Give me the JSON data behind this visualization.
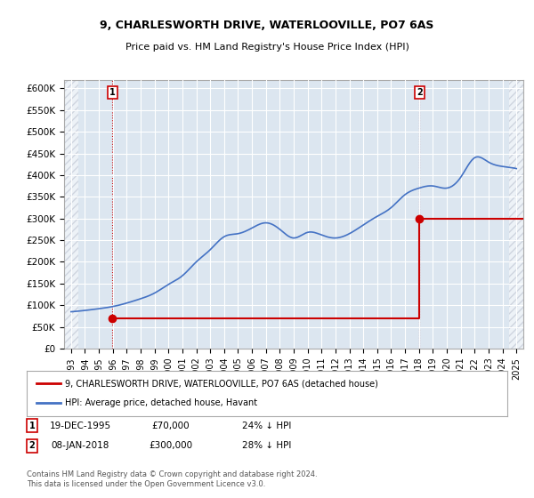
{
  "title1": "9, CHARLESWORTH DRIVE, WATERLOOVILLE, PO7 6AS",
  "title2": "Price paid vs. HM Land Registry's House Price Index (HPI)",
  "legend_line1": "9, CHARLESWORTH DRIVE, WATERLOOVILLE, PO7 6AS (detached house)",
  "legend_line2": "HPI: Average price, detached house, Havant",
  "footnote": "Contains HM Land Registry data © Crown copyright and database right 2024.\nThis data is licensed under the Open Government Licence v3.0.",
  "sale1_label": "1",
  "sale1_date": "19-DEC-1995",
  "sale1_price": "£70,000",
  "sale1_hpi": "24% ↓ HPI",
  "sale1_year": 1995.97,
  "sale1_value": 70000,
  "sale2_label": "2",
  "sale2_date": "08-JAN-2018",
  "sale2_price": "£300,000",
  "sale2_hpi": "28% ↓ HPI",
  "sale2_year": 2018.03,
  "sale2_value": 300000,
  "ylim": [
    0,
    620000
  ],
  "yticks": [
    0,
    50000,
    100000,
    150000,
    200000,
    250000,
    300000,
    350000,
    400000,
    450000,
    500000,
    550000,
    600000
  ],
  "ytick_labels": [
    "£0",
    "£50K",
    "£100K",
    "£150K",
    "£200K",
    "£250K",
    "£300K",
    "£350K",
    "£400K",
    "£450K",
    "£500K",
    "£550K",
    "£600K"
  ],
  "xlim_start": 1992.5,
  "xlim_end": 2025.5,
  "hatch_left_end": 1993.5,
  "hatch_right_start": 2024.5,
  "plot_bg_color": "#dce6f0",
  "hatch_color": "#b0b8c8",
  "grid_color": "#ffffff",
  "red_color": "#cc0000",
  "blue_color": "#4472c4",
  "sale_marker_color": "#cc0000",
  "vline_color": "#cc0000",
  "red_line_data_x": [
    1995.97,
    2018.03
  ],
  "red_line_data_y": [
    70000,
    300000
  ],
  "hpi_x": [
    1993,
    1994,
    1995,
    1996,
    1997,
    1998,
    1999,
    2000,
    2001,
    2002,
    2003,
    2004,
    2005,
    2006,
    2007,
    2008,
    2009,
    2010,
    2011,
    2012,
    2013,
    2014,
    2015,
    2016,
    2017,
    2018,
    2019,
    2020,
    2021,
    2022,
    2023,
    2024,
    2025
  ],
  "hpi_y": [
    85000,
    88000,
    92000,
    97000,
    105000,
    115000,
    128000,
    148000,
    168000,
    200000,
    228000,
    258000,
    265000,
    278000,
    290000,
    275000,
    255000,
    268000,
    262000,
    255000,
    265000,
    285000,
    305000,
    325000,
    355000,
    370000,
    375000,
    370000,
    395000,
    440000,
    430000,
    420000,
    415000
  ],
  "xtick_years": [
    1993,
    1994,
    1995,
    1996,
    1997,
    1998,
    1999,
    2000,
    2001,
    2002,
    2003,
    2004,
    2005,
    2006,
    2007,
    2008,
    2009,
    2010,
    2011,
    2012,
    2013,
    2014,
    2015,
    2016,
    2017,
    2018,
    2019,
    2020,
    2021,
    2022,
    2023,
    2024,
    2025
  ]
}
